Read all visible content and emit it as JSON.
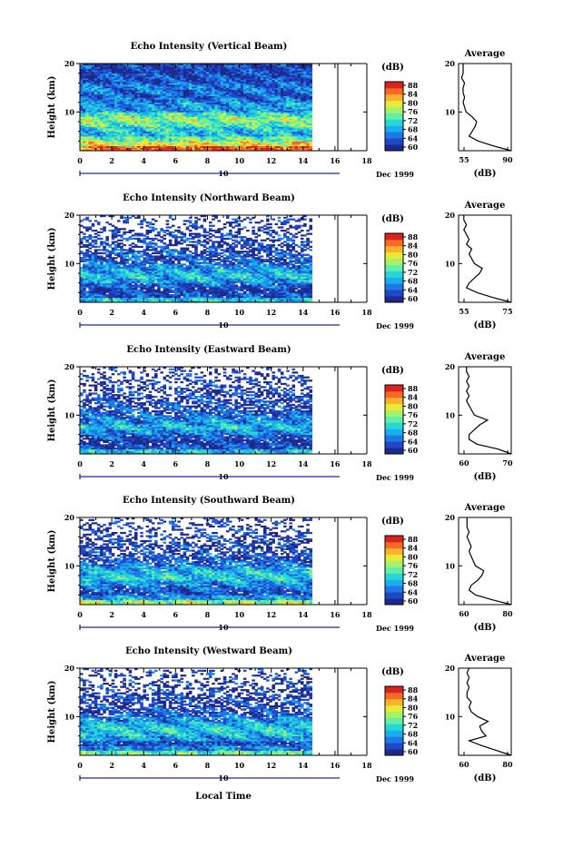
{
  "x_axis_label": "Local Time",
  "date_label": "Dec 1999",
  "day_label": "10",
  "avg_title": "Average",
  "colorbar_unit": "(dB)",
  "y_label": "Height (km)",
  "x_ticks": [
    "0",
    "2",
    "4",
    "6",
    "8",
    "10",
    "12",
    "14",
    "16",
    "18"
  ],
  "colors": [
    "#1d2a8c",
    "#1f47c8",
    "#1e78e6",
    "#19aeee",
    "#28d6d6",
    "#5ef0a6",
    "#a7f16a",
    "#e8ea3a",
    "#fbb12c",
    "#f56a25",
    "#d9231f"
  ],
  "chart_data": [
    {
      "type": "heatmap",
      "title": "Echo Intensity (Vertical Beam)",
      "xlabel": "Local Time",
      "ylabel": "Height (km)",
      "xlim": [
        0,
        18
      ],
      "ylim": [
        2,
        20
      ],
      "data_xmax": 16.2,
      "colorbar": {
        "unit": "(dB)",
        "min": 60,
        "max": 88,
        "ticks": [
          "88",
          "84",
          "80",
          "76",
          "72",
          "68",
          "64",
          "60"
        ]
      },
      "height_km": [
        3,
        4,
        5,
        6,
        7,
        8,
        9,
        10,
        11,
        12,
        13,
        14,
        15,
        16,
        17,
        18,
        19,
        20
      ],
      "mean_intensity_db": [
        85,
        79,
        74,
        70,
        71,
        74,
        76,
        73,
        68,
        68,
        66,
        65,
        66,
        66,
        64,
        64,
        63,
        63
      ],
      "average": {
        "xlim": [
          55,
          90
        ],
        "xticks": [
          "55",
          "90"
        ],
        "xlabel": "(dB)",
        "yticks": [
          "10",
          "20"
        ],
        "profile": [
          [
            2,
            90
          ],
          [
            3,
            78
          ],
          [
            4,
            68
          ],
          [
            5,
            62
          ],
          [
            6,
            64
          ],
          [
            7,
            66
          ],
          [
            8,
            67
          ],
          [
            9,
            64
          ],
          [
            10,
            60
          ],
          [
            11,
            59
          ],
          [
            12,
            58
          ],
          [
            13,
            59
          ],
          [
            14,
            58
          ],
          [
            15,
            58
          ],
          [
            16,
            59
          ],
          [
            17,
            57
          ],
          [
            18,
            58
          ],
          [
            19,
            58
          ],
          [
            20,
            58
          ]
        ]
      }
    },
    {
      "type": "heatmap",
      "title": "Echo Intensity (Northward Beam)",
      "xlabel": "Local Time",
      "ylabel": "Height (km)",
      "xlim": [
        0,
        18
      ],
      "ylim": [
        2,
        20
      ],
      "data_xmax": 16.2,
      "colorbar": {
        "unit": "(dB)",
        "min": 60,
        "max": 88,
        "ticks": [
          "88",
          "84",
          "80",
          "76",
          "72",
          "68",
          "64",
          "60"
        ]
      },
      "height_km": [
        3,
        4,
        5,
        6,
        7,
        8,
        9,
        10,
        11,
        12,
        13,
        14,
        15,
        16,
        17,
        18,
        19,
        20
      ],
      "mean_intensity_db": [
        70,
        64,
        62,
        65,
        68,
        70,
        69,
        67,
        64,
        64,
        63,
        62,
        62,
        62,
        61,
        61,
        61,
        61
      ],
      "average": {
        "xlim": [
          55,
          75
        ],
        "xticks": [
          "55",
          "75"
        ],
        "xlabel": "(dB)",
        "yticks": [
          "10",
          "20"
        ],
        "profile": [
          [
            2,
            75
          ],
          [
            3,
            68
          ],
          [
            4,
            62
          ],
          [
            5,
            58
          ],
          [
            6,
            59
          ],
          [
            7,
            61
          ],
          [
            8,
            63
          ],
          [
            9,
            64
          ],
          [
            10,
            61
          ],
          [
            11,
            60
          ],
          [
            12,
            59
          ],
          [
            13,
            60
          ],
          [
            14,
            58
          ],
          [
            15,
            59
          ],
          [
            16,
            58
          ],
          [
            17,
            57
          ],
          [
            18,
            58
          ],
          [
            19,
            57
          ],
          [
            20,
            57
          ]
        ]
      }
    },
    {
      "type": "heatmap",
      "title": "Echo Intensity (Eastward Beam)",
      "xlabel": "Local Time",
      "ylabel": "Height (km)",
      "xlim": [
        0,
        18
      ],
      "ylim": [
        2,
        20
      ],
      "data_xmax": 16.2,
      "colorbar": {
        "unit": "(dB)",
        "min": 60,
        "max": 88,
        "ticks": [
          "88",
          "84",
          "80",
          "76",
          "72",
          "68",
          "64",
          "60"
        ]
      },
      "height_km": [
        3,
        4,
        5,
        6,
        7,
        8,
        9,
        10,
        11,
        12,
        13,
        14,
        15,
        16,
        17,
        18,
        19,
        20
      ],
      "mean_intensity_db": [
        70,
        64,
        62,
        64,
        67,
        70,
        68,
        66,
        64,
        63,
        63,
        62,
        62,
        61,
        61,
        61,
        61,
        61
      ],
      "average": {
        "xlim": [
          55,
          75
        ],
        "xticks": [
          "60",
          "70"
        ],
        "xlabel": "(dB)",
        "yticks": [
          "10",
          "20"
        ],
        "profile": [
          [
            2,
            76
          ],
          [
            3,
            70
          ],
          [
            4,
            62
          ],
          [
            5,
            59
          ],
          [
            6,
            59
          ],
          [
            7,
            61
          ],
          [
            8,
            63
          ],
          [
            9,
            66
          ],
          [
            10,
            61
          ],
          [
            11,
            60
          ],
          [
            12,
            59
          ],
          [
            13,
            58
          ],
          [
            14,
            59
          ],
          [
            15,
            58
          ],
          [
            16,
            59
          ],
          [
            17,
            58
          ],
          [
            18,
            59
          ],
          [
            19,
            58
          ],
          [
            20,
            58
          ]
        ]
      }
    },
    {
      "type": "heatmap",
      "title": "Echo Intensity (Southward Beam)",
      "xlabel": "Local Time",
      "ylabel": "Height (km)",
      "xlim": [
        0,
        18
      ],
      "ylim": [
        2,
        20
      ],
      "data_xmax": 16.2,
      "colorbar": {
        "unit": "(dB)",
        "min": 60,
        "max": 88,
        "ticks": [
          "88",
          "84",
          "80",
          "76",
          "72",
          "68",
          "64",
          "60"
        ]
      },
      "height_km": [
        3,
        4,
        5,
        6,
        7,
        8,
        9,
        10,
        11,
        12,
        13,
        14,
        15,
        16,
        17,
        18,
        19,
        20
      ],
      "mean_intensity_db": [
        76,
        68,
        64,
        65,
        68,
        71,
        70,
        68,
        65,
        64,
        63,
        62,
        62,
        62,
        61,
        61,
        61,
        61
      ],
      "average": {
        "xlim": [
          55,
          80
        ],
        "xticks": [
          "60",
          "80"
        ],
        "xlabel": "(dB)",
        "yticks": [
          "10",
          "20"
        ],
        "profile": [
          [
            2,
            80
          ],
          [
            3,
            71
          ],
          [
            4,
            63
          ],
          [
            5,
            60
          ],
          [
            6,
            61
          ],
          [
            7,
            64
          ],
          [
            8,
            66
          ],
          [
            9,
            67
          ],
          [
            10,
            63
          ],
          [
            11,
            62
          ],
          [
            12,
            61
          ],
          [
            13,
            60
          ],
          [
            14,
            61
          ],
          [
            15,
            60
          ],
          [
            16,
            59
          ],
          [
            17,
            60
          ],
          [
            18,
            59
          ],
          [
            19,
            59
          ],
          [
            20,
            59
          ]
        ]
      }
    },
    {
      "type": "heatmap",
      "title": "Echo Intensity (Westward Beam)",
      "xlabel": "Local Time",
      "ylabel": "Height (km)",
      "xlim": [
        0,
        18
      ],
      "ylim": [
        2,
        20
      ],
      "data_xmax": 16.2,
      "colorbar": {
        "unit": "(dB)",
        "min": 60,
        "max": 88,
        "ticks": [
          "88",
          "84",
          "80",
          "76",
          "72",
          "68",
          "64",
          "60"
        ]
      },
      "height_km": [
        3,
        4,
        5,
        6,
        7,
        8,
        9,
        10,
        11,
        12,
        13,
        14,
        15,
        16,
        17,
        18,
        19,
        20
      ],
      "mean_intensity_db": [
        74,
        67,
        64,
        68,
        70,
        71,
        69,
        67,
        64,
        63,
        62,
        62,
        62,
        61,
        61,
        61,
        61,
        61
      ],
      "average": {
        "xlim": [
          55,
          80
        ],
        "xticks": [
          "60",
          "80"
        ],
        "xlabel": "(dB)",
        "yticks": [
          "10",
          "20"
        ],
        "profile": [
          [
            2,
            80
          ],
          [
            3,
            73
          ],
          [
            4,
            66
          ],
          [
            5,
            60
          ],
          [
            6,
            68
          ],
          [
            7,
            66
          ],
          [
            8,
            65
          ],
          [
            9,
            69
          ],
          [
            10,
            64
          ],
          [
            11,
            61
          ],
          [
            12,
            60
          ],
          [
            13,
            61
          ],
          [
            14,
            59
          ],
          [
            15,
            59
          ],
          [
            16,
            60
          ],
          [
            17,
            59
          ],
          [
            18,
            60
          ],
          [
            19,
            59
          ],
          [
            20,
            60
          ]
        ]
      }
    }
  ]
}
